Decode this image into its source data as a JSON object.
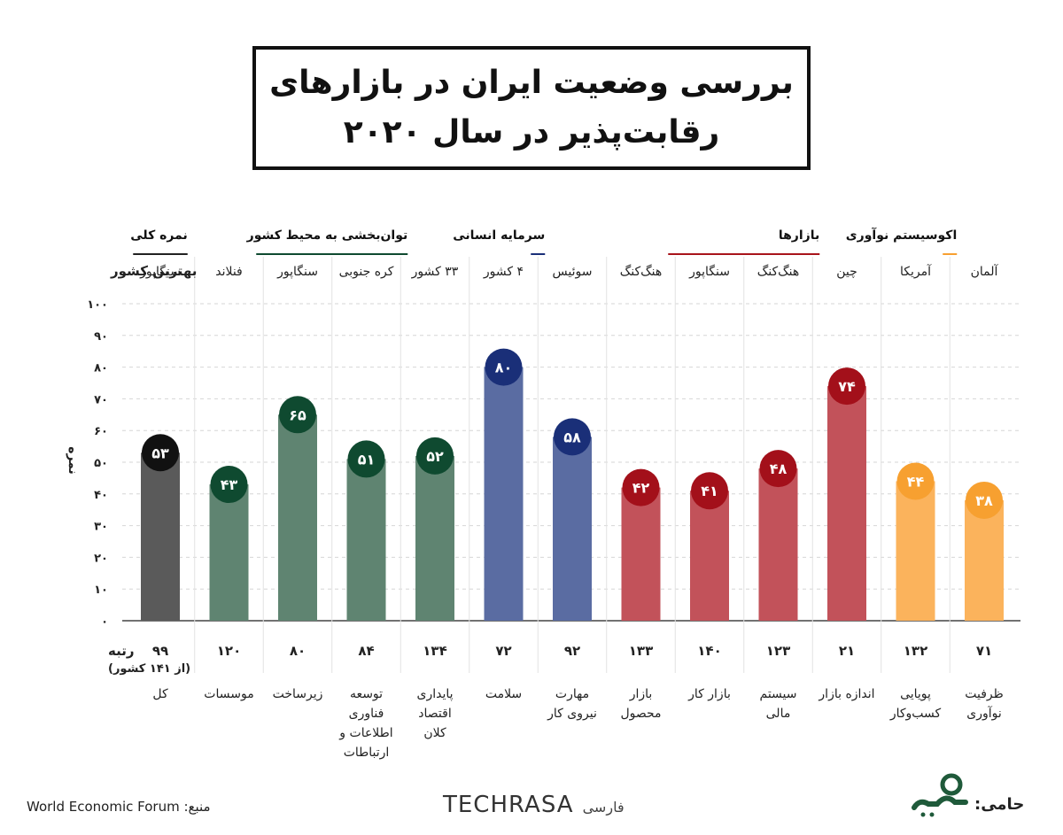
{
  "title": {
    "line1": "بررسی وضعیت ایران در بازارهای",
    "line2": "رقابت‌پذیر در سال ۲۰۲۰"
  },
  "labels": {
    "best_country": "بهترین کشور",
    "score": "نمره",
    "rank": "رتبه",
    "rank_sub": "(از ۱۴۱ کشور)"
  },
  "footer": {
    "source": "منبع: World Economic Forum",
    "brand": "TECHRASA",
    "brand_sub": "فارسی",
    "sponsor": "حامی:"
  },
  "chart_data": {
    "type": "bar",
    "ylabel": "نمره",
    "ylim": [
      0,
      100
    ],
    "yticks": [
      "۰",
      "۱۰",
      "۲۰",
      "۳۰",
      "۴۰",
      "۵۰",
      "۶۰",
      "۷۰",
      "۸۰",
      "۹۰",
      "۱۰۰"
    ],
    "grid": true,
    "groups": [
      {
        "name": "نمره کلی",
        "color": "#222222",
        "start": 0,
        "end": 0
      },
      {
        "name": "توان‌بخشی به محیط کشور",
        "color": "#0f4a30",
        "start": 1,
        "end": 4
      },
      {
        "name": "سرمایه انسانی",
        "color": "#1a2f78",
        "start": 5,
        "end": 6
      },
      {
        "name": "بازارها",
        "color": "#a8141b",
        "start": 7,
        "end": 10
      },
      {
        "name": "اکوسیستم نوآوری",
        "color": "#f7a030",
        "start": 11,
        "end": 12
      }
    ],
    "categories": [
      {
        "name": [
          "کل"
        ],
        "best": "سنگاپور",
        "value": 53,
        "label": "۵۳",
        "rank": "۹۹",
        "group": 0
      },
      {
        "name": [
          "موسسات"
        ],
        "best": "فنلاند",
        "value": 43,
        "label": "۴۳",
        "rank": "۱۲۰",
        "group": 1
      },
      {
        "name": [
          "زیرساخت"
        ],
        "best": "سنگاپور",
        "value": 65,
        "label": "۶۵",
        "rank": "۸۰",
        "group": 1
      },
      {
        "name": [
          "توسعه",
          "فناوری",
          "اطلاعات و",
          "ارتباطات"
        ],
        "best": "کره جنوبی",
        "value": 51,
        "label": "۵۱",
        "rank": "۸۴",
        "group": 1
      },
      {
        "name": [
          "پایداری",
          "اقتصاد",
          "کلان"
        ],
        "best": "۳۳ کشور",
        "value": 52,
        "label": "۵۲",
        "rank": "۱۳۴",
        "group": 1
      },
      {
        "name": [
          "سلامت"
        ],
        "best": "۴ کشور",
        "value": 80,
        "label": "۸۰",
        "rank": "۷۲",
        "group": 2
      },
      {
        "name": [
          "مهارت",
          "نیروی کار"
        ],
        "best": "سوئیس",
        "value": 58,
        "label": "۵۸",
        "rank": "۹۲",
        "group": 2
      },
      {
        "name": [
          "بازار",
          "محصول"
        ],
        "best": "هنگ‌کنگ",
        "value": 42,
        "label": "۴۲",
        "rank": "۱۳۳",
        "group": 3
      },
      {
        "name": [
          "بازار کار"
        ],
        "best": "سنگاپور",
        "value": 41,
        "label": "۴۱",
        "rank": "۱۴۰",
        "group": 3
      },
      {
        "name": [
          "سیستم",
          "مالی"
        ],
        "best": "هنگ‌کنگ",
        "value": 48,
        "label": "۴۸",
        "rank": "۱۲۳",
        "group": 3
      },
      {
        "name": [
          "اندازه بازار"
        ],
        "best": "چین",
        "value": 74,
        "label": "۷۴",
        "rank": "۲۱",
        "group": 3
      },
      {
        "name": [
          "پویایی",
          "کسب‌وکار"
        ],
        "best": "آمریکا",
        "value": 44,
        "label": "۴۴",
        "rank": "۱۳۲",
        "group": 4
      },
      {
        "name": [
          "ظرفیت",
          "نوآوری"
        ],
        "best": "آلمان",
        "value": 38,
        "label": "۳۸",
        "rank": "۷۱",
        "group": 4
      }
    ],
    "bar_colors": [
      "#5a5a5a",
      "#5f8471",
      "#5f8471",
      "#5f8471",
      "#5f8471",
      "#5a6ca2",
      "#5a6ca2",
      "#c2525a",
      "#c2525a",
      "#c2525a",
      "#c2525a",
      "#fbb35c",
      "#fbb35c"
    ],
    "badge_colors": [
      "#111111",
      "#0f4a30",
      "#0f4a30",
      "#0f4a30",
      "#0f4a30",
      "#1a2f78",
      "#1a2f78",
      "#a3101a",
      "#a3101a",
      "#a3101a",
      "#a3101a",
      "#f7a030",
      "#f7a030"
    ]
  }
}
